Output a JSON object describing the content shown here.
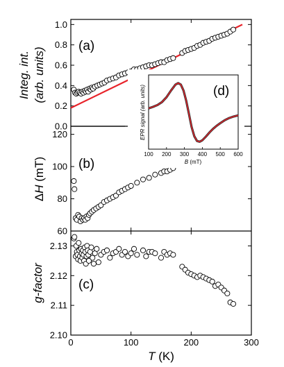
{
  "chart_data": [
    {
      "type": "scatter",
      "panel_label": "(a)",
      "ylabel": "Integ. int. (arb. units)",
      "ylabel_lines": [
        "Integ. int.",
        "(arb. units)"
      ],
      "xlim": [
        0,
        300
      ],
      "ylim": [
        0.0,
        1.05
      ],
      "yticks": [
        "0.0",
        "0.2",
        "0.4",
        "0.6",
        "0.8",
        "1.0"
      ],
      "ytick_values": [
        0.0,
        0.2,
        0.4,
        0.6,
        0.8,
        1.0
      ],
      "zero_line": {
        "x_start": 0,
        "x_end": 90,
        "y": 0.0
      },
      "fit_line": {
        "color": "#e8232a",
        "x0": 0,
        "y0": 0.18,
        "x1": 285,
        "y1": 1.0
      },
      "marker": "open-circle",
      "series": [
        {
          "x": [
            5,
            7,
            9,
            11,
            13,
            15,
            17,
            19,
            21,
            23,
            25,
            27,
            29,
            31,
            33,
            35,
            37,
            40,
            44,
            48,
            52,
            56,
            60,
            65,
            70,
            75,
            80,
            85,
            90,
            95,
            100,
            105,
            110,
            115,
            120,
            125,
            130,
            135,
            140,
            145,
            150,
            155,
            160,
            165,
            170,
            185,
            190,
            195,
            200,
            205,
            210,
            215,
            220,
            225,
            230,
            235,
            240,
            245,
            250,
            255,
            260,
            265,
            270
          ],
          "y": [
            0.36,
            0.33,
            0.32,
            0.33,
            0.34,
            0.33,
            0.32,
            0.34,
            0.33,
            0.35,
            0.34,
            0.36,
            0.34,
            0.37,
            0.36,
            0.38,
            0.37,
            0.39,
            0.4,
            0.41,
            0.42,
            0.43,
            0.45,
            0.46,
            0.47,
            0.48,
            0.5,
            0.51,
            0.52,
            0.53,
            0.54,
            0.56,
            0.56,
            0.57,
            0.58,
            0.59,
            0.6,
            0.6,
            0.61,
            0.62,
            0.63,
            0.63,
            0.65,
            0.66,
            0.67,
            0.72,
            0.74,
            0.75,
            0.76,
            0.77,
            0.79,
            0.8,
            0.82,
            0.83,
            0.84,
            0.86,
            0.87,
            0.88,
            0.89,
            0.9,
            0.91,
            0.93,
            0.95
          ]
        }
      ]
    },
    {
      "type": "scatter",
      "panel_label": "(b)",
      "ylabel": "ΔH (mT)",
      "ylabel_parts": {
        "delta": "Δ",
        "symbol": "H",
        "unit": " (mT)"
      },
      "xlim": [
        0,
        300
      ],
      "ylim": [
        60,
        125
      ],
      "yticks": [
        "60",
        "80",
        "100",
        "120"
      ],
      "ytick_values": [
        60,
        80,
        100,
        120
      ],
      "marker": "open-circle",
      "series": [
        {
          "x": [
            5,
            6,
            8,
            10,
            12,
            14,
            16,
            18,
            20,
            22,
            24,
            26,
            28,
            30,
            32,
            35,
            38,
            42,
            46,
            50,
            55,
            60,
            65,
            70,
            75,
            80,
            85,
            90,
            95,
            100,
            110,
            120,
            130,
            140,
            150,
            155,
            160,
            165,
            170,
            190,
            195,
            200,
            205,
            210,
            215,
            220,
            225,
            230,
            235,
            240,
            245,
            250,
            255,
            260,
            265,
            270
          ],
          "y": [
            91,
            86,
            68,
            67,
            70,
            69,
            66,
            68,
            67,
            68,
            67,
            69,
            68,
            70,
            71,
            72,
            73,
            74,
            75,
            76,
            78,
            79,
            80,
            81,
            82,
            84,
            85,
            86,
            87,
            88,
            90,
            92,
            93,
            95,
            96,
            97,
            97,
            98,
            99,
            103,
            104,
            105,
            106,
            107,
            108,
            108,
            109,
            110,
            111,
            112,
            113,
            113,
            114,
            115,
            116,
            117
          ]
        }
      ]
    },
    {
      "type": "scatter",
      "panel_label": "(c)",
      "ylabel": "g-factor",
      "xlabel": "T (K)",
      "xlabel_parts": {
        "symbol": "T",
        "unit": " (K)"
      },
      "xlim": [
        0,
        300
      ],
      "ylim": [
        2.1,
        2.135
      ],
      "xticks": [
        "0",
        "100",
        "200",
        "300"
      ],
      "xtick_values": [
        0,
        100,
        200,
        300
      ],
      "yticks": [
        "2.10",
        "2.11",
        "2.12",
        "2.13"
      ],
      "ytick_values": [
        2.1,
        2.11,
        2.12,
        2.13
      ],
      "marker": "open-circle",
      "series": [
        {
          "x": [
            5,
            6,
            8,
            9,
            10,
            11,
            12,
            13,
            14,
            15,
            16,
            17,
            18,
            19,
            20,
            21,
            22,
            23,
            24,
            25,
            26,
            27,
            28,
            29,
            30,
            32,
            34,
            36,
            38,
            40,
            43,
            46,
            50,
            55,
            60,
            65,
            70,
            75,
            80,
            85,
            90,
            95,
            100,
            105,
            110,
            120,
            125,
            130,
            135,
            140,
            150,
            155,
            160,
            165,
            170,
            185,
            190,
            195,
            200,
            205,
            210,
            215,
            220,
            225,
            230,
            235,
            240,
            245,
            250,
            255,
            260,
            265,
            270
          ],
          "y": [
            2.1325,
            2.133,
            2.1265,
            2.13,
            2.128,
            2.127,
            2.1255,
            2.131,
            2.1285,
            2.1265,
            2.125,
            2.129,
            2.1275,
            2.126,
            2.1285,
            2.127,
            2.125,
            2.1295,
            2.128,
            2.124,
            2.1265,
            2.13,
            2.1285,
            2.127,
            2.125,
            2.128,
            2.1295,
            2.126,
            2.124,
            2.1275,
            2.129,
            2.1245,
            2.127,
            2.128,
            2.1285,
            2.126,
            2.1275,
            2.128,
            2.129,
            2.127,
            2.128,
            2.1265,
            2.1275,
            2.129,
            2.127,
            2.1285,
            2.1265,
            2.128,
            2.128,
            2.1275,
            2.126,
            2.128,
            2.127,
            2.1275,
            2.127,
            2.123,
            2.122,
            2.121,
            2.1205,
            2.12,
            2.1195,
            2.12,
            2.1195,
            2.119,
            2.1185,
            2.118,
            2.1165,
            2.117,
            2.116,
            2.115,
            2.114,
            2.111,
            2.1105
          ]
        }
      ]
    },
    {
      "type": "line",
      "panel_label": "(d)",
      "ylabel": "EPR signal (arb. units)",
      "xlabel": "B (mT)",
      "xlabel_parts": {
        "symbol": "B",
        "unit": " (mT)"
      },
      "xlim": [
        100,
        600
      ],
      "ylim": [
        -1.0,
        1.0
      ],
      "xticks": [
        "100",
        "200",
        "300",
        "400",
        "500",
        "600"
      ],
      "xtick_values": [
        100,
        200,
        300,
        400,
        500,
        600
      ],
      "series": [
        {
          "name": "data",
          "color": "#333333",
          "x": [
            100,
            125,
            150,
            175,
            200,
            225,
            250,
            265,
            280,
            295,
            310,
            325,
            340,
            355,
            370,
            385,
            400,
            420,
            440,
            460,
            480,
            500,
            525,
            550,
            575,
            600
          ],
          "y": [
            0.1,
            0.14,
            0.19,
            0.27,
            0.4,
            0.58,
            0.74,
            0.78,
            0.74,
            0.58,
            0.3,
            -0.05,
            -0.4,
            -0.65,
            -0.78,
            -0.8,
            -0.76,
            -0.66,
            -0.55,
            -0.45,
            -0.37,
            -0.3,
            -0.22,
            -0.16,
            -0.12,
            -0.09
          ]
        },
        {
          "name": "fit",
          "color": "#e8232a",
          "x": [
            100,
            125,
            150,
            175,
            200,
            225,
            250,
            265,
            280,
            295,
            310,
            325,
            340,
            355,
            370,
            385,
            400,
            420,
            440,
            460,
            480,
            500,
            525,
            550,
            575,
            600
          ],
          "y": [
            0.1,
            0.14,
            0.19,
            0.27,
            0.4,
            0.58,
            0.74,
            0.78,
            0.74,
            0.58,
            0.3,
            -0.05,
            -0.4,
            -0.65,
            -0.78,
            -0.8,
            -0.76,
            -0.66,
            -0.55,
            -0.45,
            -0.37,
            -0.3,
            -0.22,
            -0.16,
            -0.12,
            -0.09
          ]
        }
      ]
    }
  ]
}
